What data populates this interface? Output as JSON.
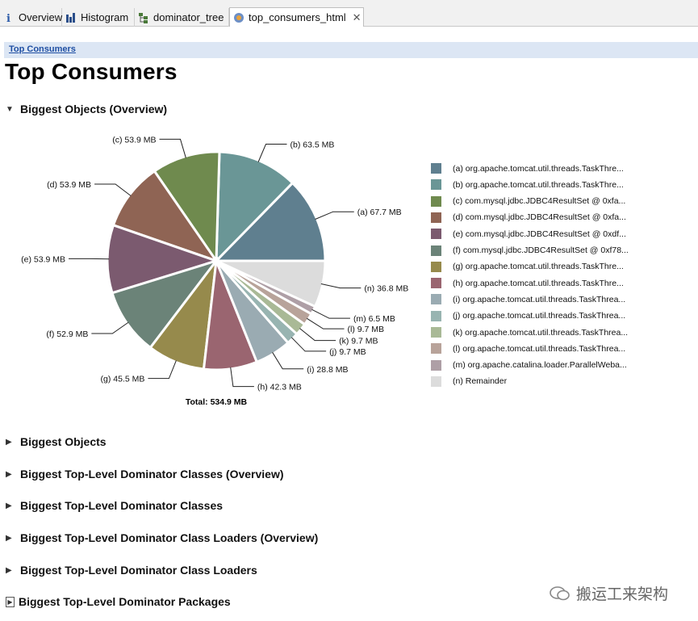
{
  "tabs": [
    {
      "label": "Overview",
      "icon": "info-icon"
    },
    {
      "label": "Histogram",
      "icon": "histogram-icon"
    },
    {
      "label": "dominator_tree",
      "icon": "tree-icon"
    },
    {
      "label": "top_consumers_html",
      "icon": "report-icon",
      "active": true
    }
  ],
  "breadcrumb": "Top Consumers",
  "page_title": "Top Consumers",
  "sections": {
    "expanded": "Biggest Objects (Overview)",
    "collapsed": [
      "Biggest Objects",
      "Biggest Top-Level Dominator Classes (Overview)",
      "Biggest Top-Level Dominator Classes",
      "Biggest Top-Level Dominator Class Loaders (Overview)",
      "Biggest Top-Level Dominator Class Loaders",
      "Biggest Top-Level Dominator Packages"
    ]
  },
  "chart_data": {
    "type": "pie",
    "total_label": "Total: 534.9 MB",
    "slices": [
      {
        "label": "(a)",
        "value_label": "67.7 MB",
        "value": 67.7,
        "color": "#5f7f8f",
        "legend": "(a)  org.apache.tomcat.util.threads.TaskThre..."
      },
      {
        "label": "(b)",
        "value_label": "63.5 MB",
        "value": 63.5,
        "color": "#6a9696",
        "legend": "(b)  org.apache.tomcat.util.threads.TaskThre..."
      },
      {
        "label": "(c)",
        "value_label": "53.9 MB",
        "value": 53.9,
        "color": "#6f8a4e",
        "legend": "(c)  com.mysql.jdbc.JDBC4ResultSet @ 0xfa..."
      },
      {
        "label": "(d)",
        "value_label": "53.9 MB",
        "value": 53.9,
        "color": "#8f6454",
        "legend": "(d)  com.mysql.jdbc.JDBC4ResultSet @ 0xfa..."
      },
      {
        "label": "(e)",
        "value_label": "53.9 MB",
        "value": 53.9,
        "color": "#7b5a6f",
        "legend": "(e)  com.mysql.jdbc.JDBC4ResultSet @ 0xdf..."
      },
      {
        "label": "(f)",
        "value_label": "52.9 MB",
        "value": 52.9,
        "color": "#6b8378",
        "legend": "(f)  com.mysql.jdbc.JDBC4ResultSet @ 0xf78..."
      },
      {
        "label": "(g)",
        "value_label": "45.5 MB",
        "value": 45.5,
        "color": "#968a4c",
        "legend": "(g)  org.apache.tomcat.util.threads.TaskThre..."
      },
      {
        "label": "(h)",
        "value_label": "42.3 MB",
        "value": 42.3,
        "color": "#9a6570",
        "legend": "(h)  org.apache.tomcat.util.threads.TaskThre..."
      },
      {
        "label": "(i)",
        "value_label": "28.8 MB",
        "value": 28.8,
        "color": "#9aabb2",
        "legend": "(i)  org.apache.tomcat.util.threads.TaskThrea..."
      },
      {
        "label": "(j)",
        "value_label": "9.7 MB",
        "value": 9.7,
        "color": "#98b4b1",
        "legend": "(j)  org.apache.tomcat.util.threads.TaskThrea..."
      },
      {
        "label": "(k)",
        "value_label": "9.7 MB",
        "value": 9.7,
        "color": "#a9b996",
        "legend": "(k)  org.apache.tomcat.util.threads.TaskThrea..."
      },
      {
        "label": "(l)",
        "value_label": "9.7 MB",
        "value": 9.7,
        "color": "#b8a39a",
        "legend": "(l)  org.apache.tomcat.util.threads.TaskThrea..."
      },
      {
        "label": "(m)",
        "value_label": "6.5 MB",
        "value": 6.5,
        "color": "#ae9fa6",
        "legend": "(m)  org.apache.catalina.loader.ParallelWeba..."
      },
      {
        "label": "(n)",
        "value_label": "36.8 MB",
        "value": 36.8,
        "color": "#dcdcdc",
        "legend": "(n)  Remainder"
      }
    ]
  },
  "watermark": "搬运工来架构"
}
